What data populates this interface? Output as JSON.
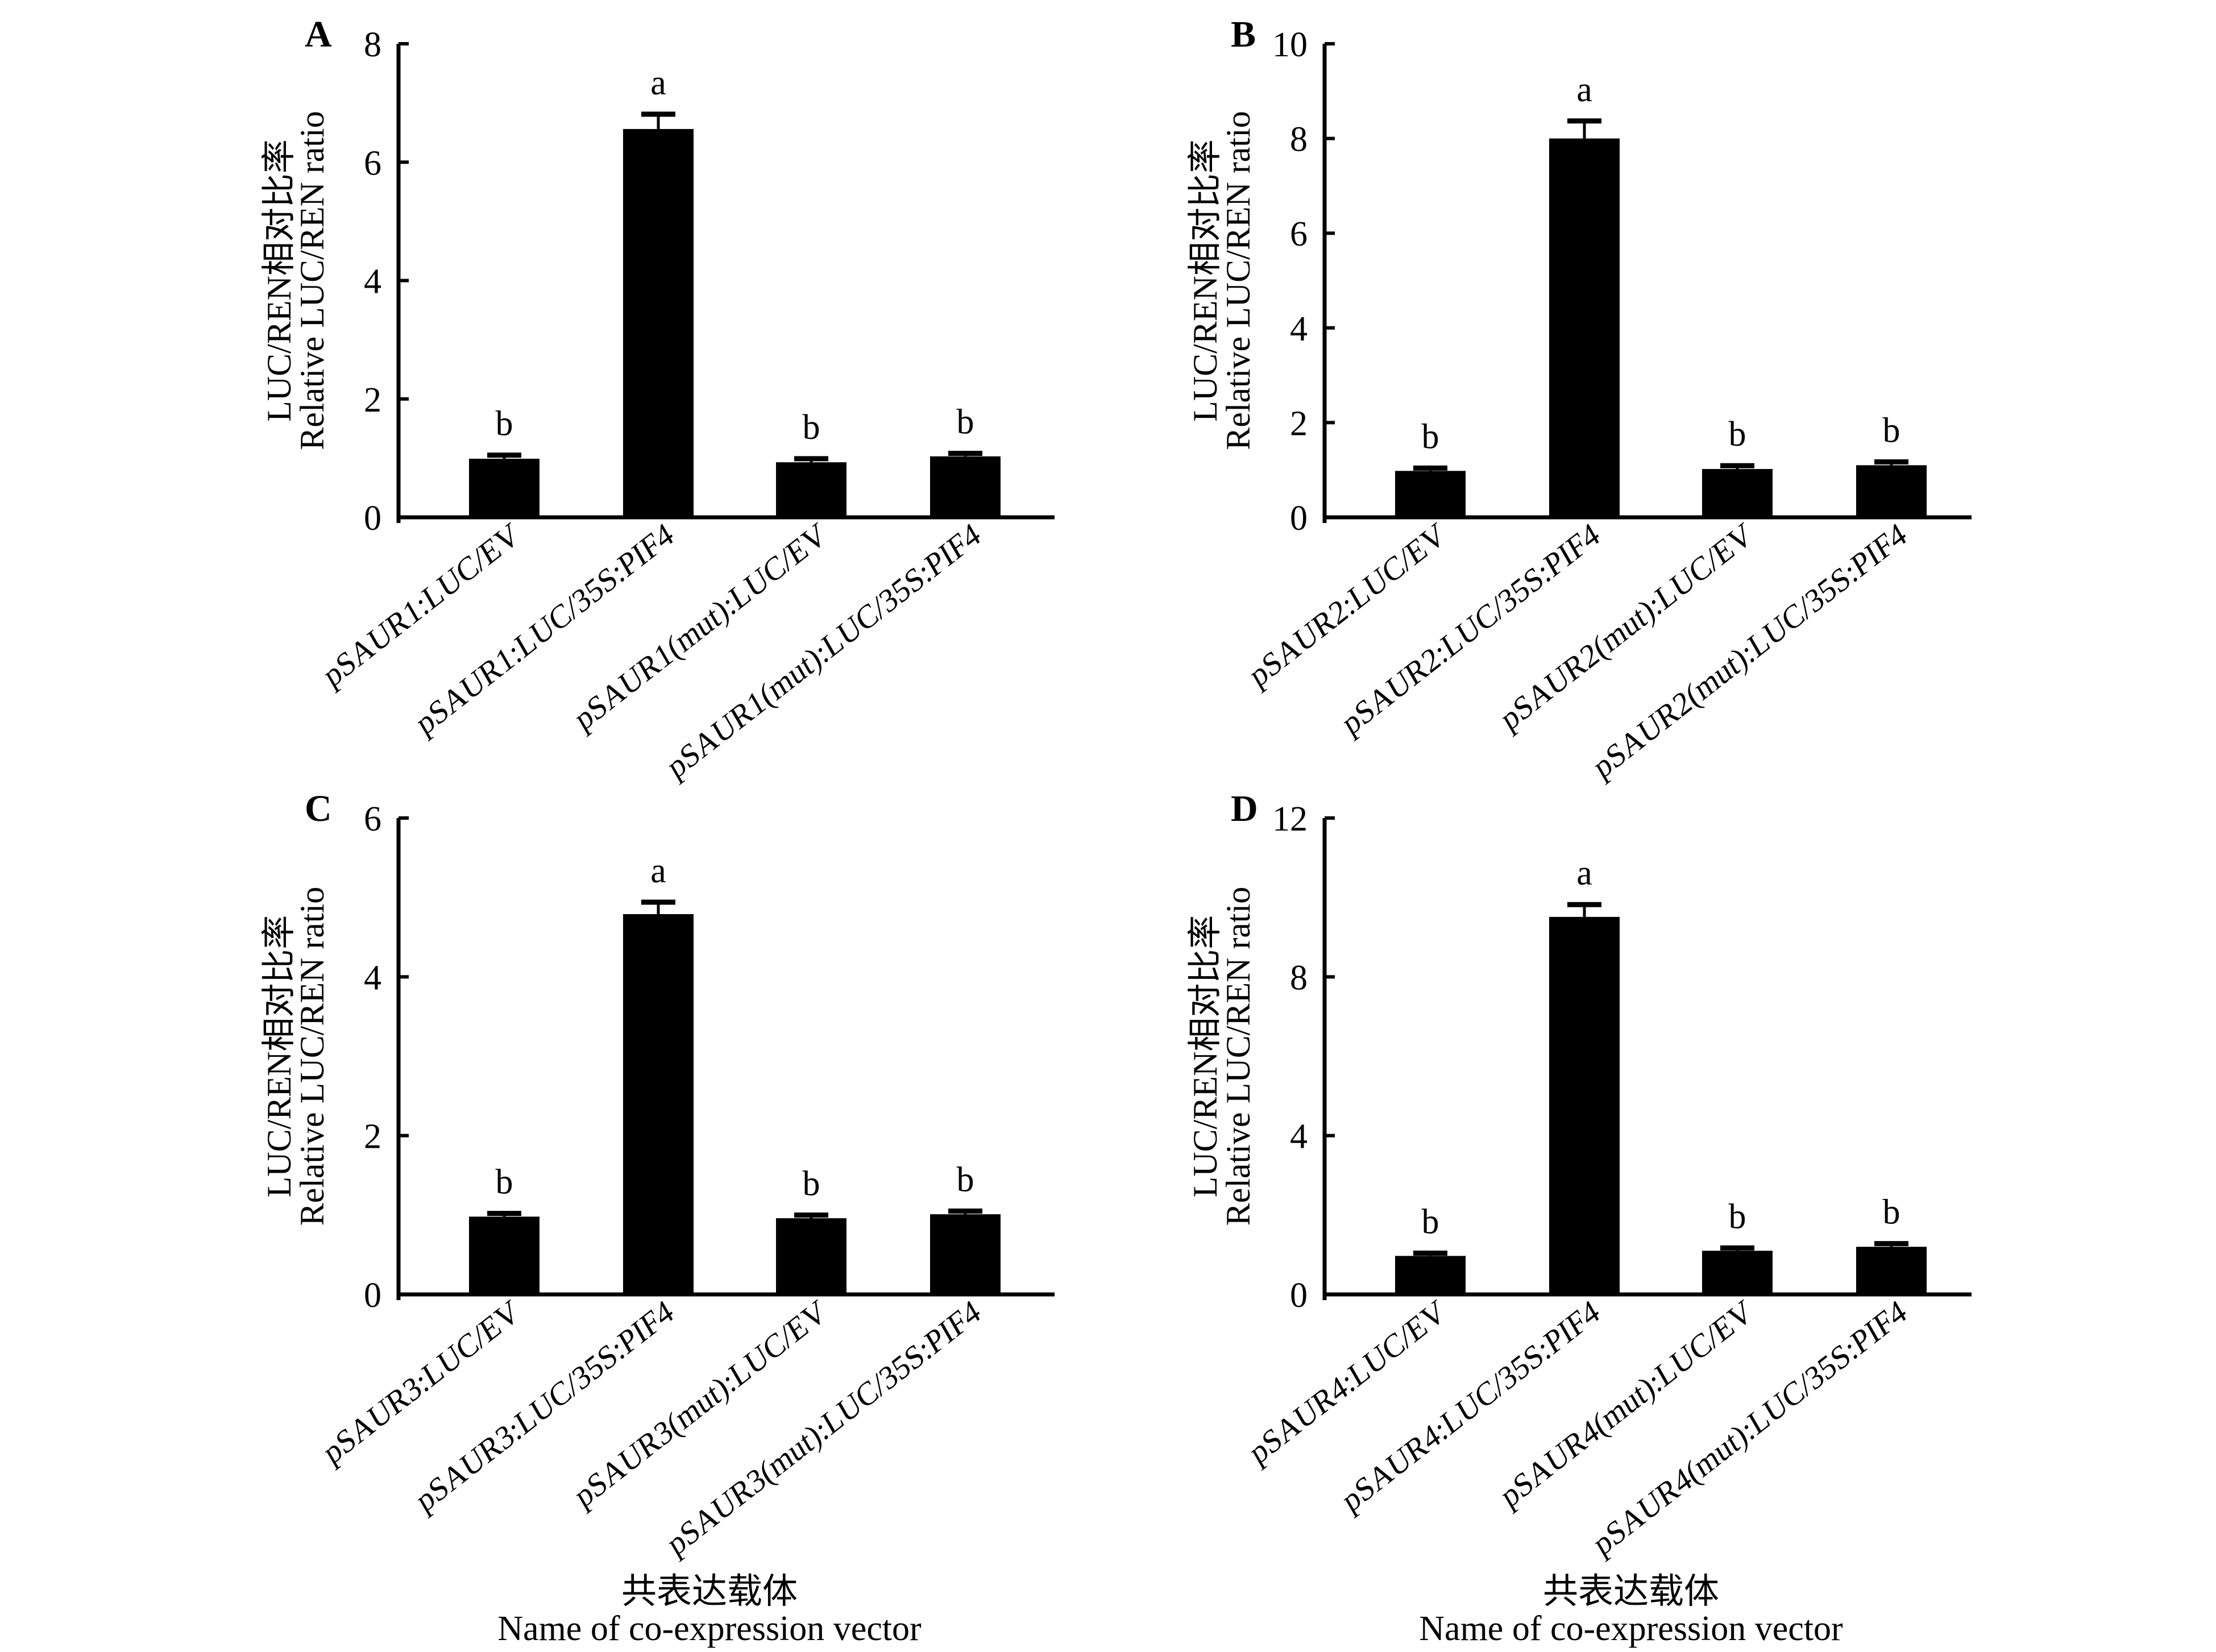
{
  "chart_data": [
    {
      "type": "bar",
      "panel": "A",
      "categories": [
        "pSAUR1:LUC/EV",
        "pSAUR1:LUC/35S:PIF4",
        "pSAUR1(mut):LUC/EV",
        "pSAUR1(mut):LUC/35S:PIF4"
      ],
      "values": [
        0.99,
        6.56,
        0.93,
        1.03
      ],
      "errors": [
        0.06,
        0.25,
        0.06,
        0.05
      ],
      "significance": [
        "b",
        "a",
        "b",
        "b"
      ],
      "ylim": [
        0,
        8
      ],
      "yticks": [
        "0",
        "2",
        "4",
        "6",
        "8"
      ],
      "ytick_values": [
        0,
        2,
        4,
        6,
        8
      ],
      "ylabel_line1": "LUC/REN相对比率",
      "ylabel_line2": "Relative LUC/REN ratio",
      "xlabel_line1": "",
      "xlabel_line2": ""
    },
    {
      "type": "bar",
      "panel": "B",
      "categories": [
        "pSAUR2:LUC/EV",
        "pSAUR2:LUC/35S:PIF4",
        "pSAUR2(mut):LUC/EV",
        "pSAUR2(mut):LUC/35S:PIF4"
      ],
      "values": [
        0.98,
        8.0,
        1.02,
        1.1
      ],
      "errors": [
        0.06,
        0.37,
        0.07,
        0.07
      ],
      "significance": [
        "b",
        "a",
        "b",
        "b"
      ],
      "ylim": [
        0,
        10
      ],
      "yticks": [
        "0",
        "2",
        "4",
        "6",
        "8",
        "10"
      ],
      "ytick_values": [
        0,
        2,
        4,
        6,
        8,
        10
      ],
      "ylabel_line1": "LUC/REN相对比率",
      "ylabel_line2": "Relative LUC/REN ratio",
      "xlabel_line1": "",
      "xlabel_line2": ""
    },
    {
      "type": "bar",
      "panel": "C",
      "categories": [
        "pSAUR3:LUC/EV",
        "pSAUR3:LUC/35S:PIF4",
        "pSAUR3(mut):LUC/EV",
        "pSAUR3(mut):LUC/35S:PIF4"
      ],
      "values": [
        0.98,
        4.79,
        0.96,
        1.01
      ],
      "errors": [
        0.04,
        0.15,
        0.04,
        0.04
      ],
      "significance": [
        "b",
        "a",
        "b",
        "b"
      ],
      "ylim": [
        0,
        6
      ],
      "yticks": [
        "0",
        "2",
        "4",
        "6"
      ],
      "ytick_values": [
        0,
        2,
        4,
        6
      ],
      "ylabel_line1": "LUC/REN相对比率",
      "ylabel_line2": "Relative LUC/REN ratio",
      "xlabel_line1": "共表达载体",
      "xlabel_line2": "Name of co-expression vector"
    },
    {
      "type": "bar",
      "panel": "D",
      "categories": [
        "pSAUR4:LUC/EV",
        "pSAUR4:LUC/35S:PIF4",
        "pSAUR4(mut):LUC/EV",
        "pSAUR4(mut):LUC/35S:PIF4"
      ],
      "values": [
        0.97,
        9.51,
        1.1,
        1.2
      ],
      "errors": [
        0.07,
        0.31,
        0.07,
        0.08
      ],
      "significance": [
        "b",
        "a",
        "b",
        "b"
      ],
      "ylim": [
        0,
        12
      ],
      "yticks": [
        "0",
        "4",
        "8",
        "12"
      ],
      "ytick_values": [
        0,
        4,
        8,
        12
      ],
      "ylabel_line1": "LUC/REN相对比率",
      "ylabel_line2": "Relative LUC/REN ratio",
      "xlabel_line1": "共表达载体",
      "xlabel_line2": "Name of co-expression vector"
    }
  ],
  "colors": {
    "bar": "#000000",
    "axis": "#000000",
    "background": "#ffffff"
  }
}
